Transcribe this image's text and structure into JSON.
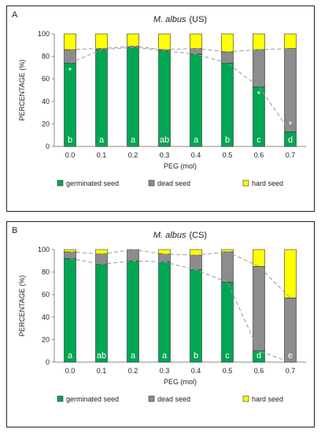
{
  "chart_data": [
    {
      "type": "bar",
      "panel_letter": "A",
      "title": "M. albus",
      "title_suffix": "(US)",
      "xlabel": "PEG (mol)",
      "ylabel": "PERCENTAGE (%)",
      "ylim": [
        0,
        100
      ],
      "yticks": [
        "0",
        "20",
        "40",
        "60",
        "80",
        "100"
      ],
      "categories": [
        "0.0",
        "0.1",
        "0.2",
        "0.3",
        "0.4",
        "0.5",
        "0.6",
        "0.7"
      ],
      "stacked": true,
      "grid": false,
      "legend_position": "bottom",
      "series": [
        {
          "name": "germinated seed",
          "color": "#00a651",
          "values": [
            74,
            86,
            88,
            85,
            82,
            74,
            53,
            13
          ]
        },
        {
          "name": "dead seed",
          "color": "#8c8c8c",
          "values": [
            12,
            1,
            1,
            1,
            5,
            10,
            33,
            74
          ]
        },
        {
          "name": "hard seed",
          "color": "#ffff00",
          "values": [
            14,
            13,
            11,
            14,
            13,
            16,
            14,
            13
          ]
        }
      ],
      "letters": [
        "b",
        "a",
        "a",
        "ab",
        "a",
        "b",
        "c",
        "d"
      ],
      "asterisks": [
        true,
        false,
        false,
        false,
        false,
        false,
        true,
        true
      ]
    },
    {
      "type": "bar",
      "panel_letter": "B",
      "title": "M. albus",
      "title_suffix": "(CS)",
      "xlabel": "PEG (mol)",
      "ylabel": "PERCENTAGE (%)",
      "ylim": [
        0,
        100
      ],
      "yticks": [
        "0",
        "20",
        "40",
        "60",
        "80",
        "100"
      ],
      "categories": [
        "0.0",
        "0.1",
        "0.2",
        "0.3",
        "0.4",
        "0.5",
        "0.6",
        "0.7"
      ],
      "stacked": true,
      "grid": false,
      "legend_position": "bottom",
      "series": [
        {
          "name": "germinated seed",
          "color": "#00a651",
          "values": [
            92,
            87,
            90,
            89,
            82,
            71,
            10,
            0
          ]
        },
        {
          "name": "dead seed",
          "color": "#8c8c8c",
          "values": [
            6,
            9,
            10,
            7,
            13,
            27,
            75,
            57
          ]
        },
        {
          "name": "hard seed",
          "color": "#ffff00",
          "values": [
            2,
            4,
            0,
            4,
            5,
            2,
            15,
            43
          ]
        }
      ],
      "letters": [
        "a",
        "ab",
        "a",
        "a",
        "b",
        "c",
        "d",
        "e"
      ],
      "asterisks": [
        false,
        false,
        false,
        false,
        false,
        false,
        false,
        false
      ]
    }
  ]
}
